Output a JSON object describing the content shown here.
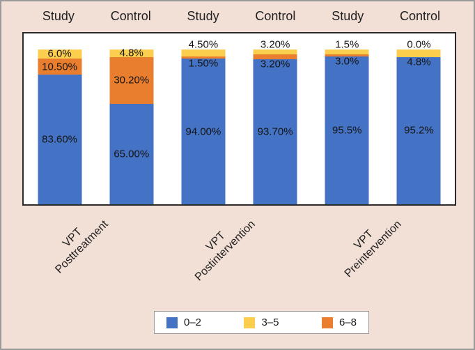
{
  "colors": {
    "blue": "#4472C4",
    "yellow": "#FCCE4E",
    "orange": "#E97E2E",
    "background": "#F2DFD6",
    "plot_background": "#FFFFFF",
    "plot_border": "#2B2B2B",
    "outer_border": "#9A9A9A"
  },
  "chart_data": {
    "type": "bar",
    "stacked": true,
    "unit": "%",
    "title": "",
    "xlabel": "",
    "ylabel": "",
    "ylim": [
      0,
      110
    ],
    "grid": false,
    "legend_position": "bottom",
    "categories": [
      "VPT Posttreatment",
      "VPT Postintervention",
      "VPT Preintervention"
    ],
    "bar_headers": [
      "Study",
      "Control",
      "Study",
      "Control",
      "Study",
      "Control"
    ],
    "stack_order_bottom_to_top": [
      "0–2",
      "6–8",
      "3–5"
    ],
    "series": [
      {
        "name": "0–2",
        "color_key": "blue",
        "values": [
          83.6,
          65.0,
          94.0,
          93.7,
          95.5,
          95.2
        ]
      },
      {
        "name": "3–5",
        "color_key": "yellow",
        "values": [
          6.0,
          4.8,
          4.5,
          3.2,
          3.0,
          4.8
        ]
      },
      {
        "name": "6–8",
        "color_key": "orange",
        "values": [
          10.5,
          30.2,
          1.5,
          3.2,
          1.5,
          0.0
        ]
      }
    ],
    "bars": [
      {
        "labels": [
          {
            "text": "6.0%",
            "placement": "in-yellow"
          },
          {
            "text": "10.50%",
            "placement": "in-orange"
          },
          {
            "text": "83.60%",
            "placement": "in-blue"
          }
        ]
      },
      {
        "labels": [
          {
            "text": "4.8%",
            "placement": "in-yellow"
          },
          {
            "text": "30.20%",
            "placement": "in-orange"
          },
          {
            "text": "65.00%",
            "placement": "in-blue"
          }
        ]
      },
      {
        "labels": [
          {
            "text": "4.50%",
            "placement": "above-top"
          },
          {
            "text": "1.50%",
            "placement": "below-strip"
          },
          {
            "text": "94.00%",
            "placement": "in-blue"
          }
        ]
      },
      {
        "labels": [
          {
            "text": "3.20%",
            "placement": "above-top"
          },
          {
            "text": "3.20%",
            "placement": "below-strip"
          },
          {
            "text": "93.70%",
            "placement": "in-blue"
          }
        ]
      },
      {
        "labels": [
          {
            "text": "1.5%",
            "placement": "above-top"
          },
          {
            "text": "3.0%",
            "placement": "below-strip"
          },
          {
            "text": "95.5%",
            "placement": "in-blue"
          }
        ]
      },
      {
        "labels": [
          {
            "text": "0.0%",
            "placement": "above-top"
          },
          {
            "text": "4.8%",
            "placement": "below-strip"
          },
          {
            "text": "95.2%",
            "placement": "in-blue"
          }
        ]
      }
    ]
  },
  "axis_labels": [
    {
      "line1": "VPT",
      "line2": "Posttreatment"
    },
    {
      "line1": "VPT",
      "line2": "Postintervention"
    },
    {
      "line1": "VPT",
      "line2": "Preintervention"
    }
  ],
  "legend": {
    "items": [
      {
        "label": "0–2",
        "color_key": "blue"
      },
      {
        "label": "3–5",
        "color_key": "yellow"
      },
      {
        "label": "6–8",
        "color_key": "orange"
      }
    ]
  }
}
